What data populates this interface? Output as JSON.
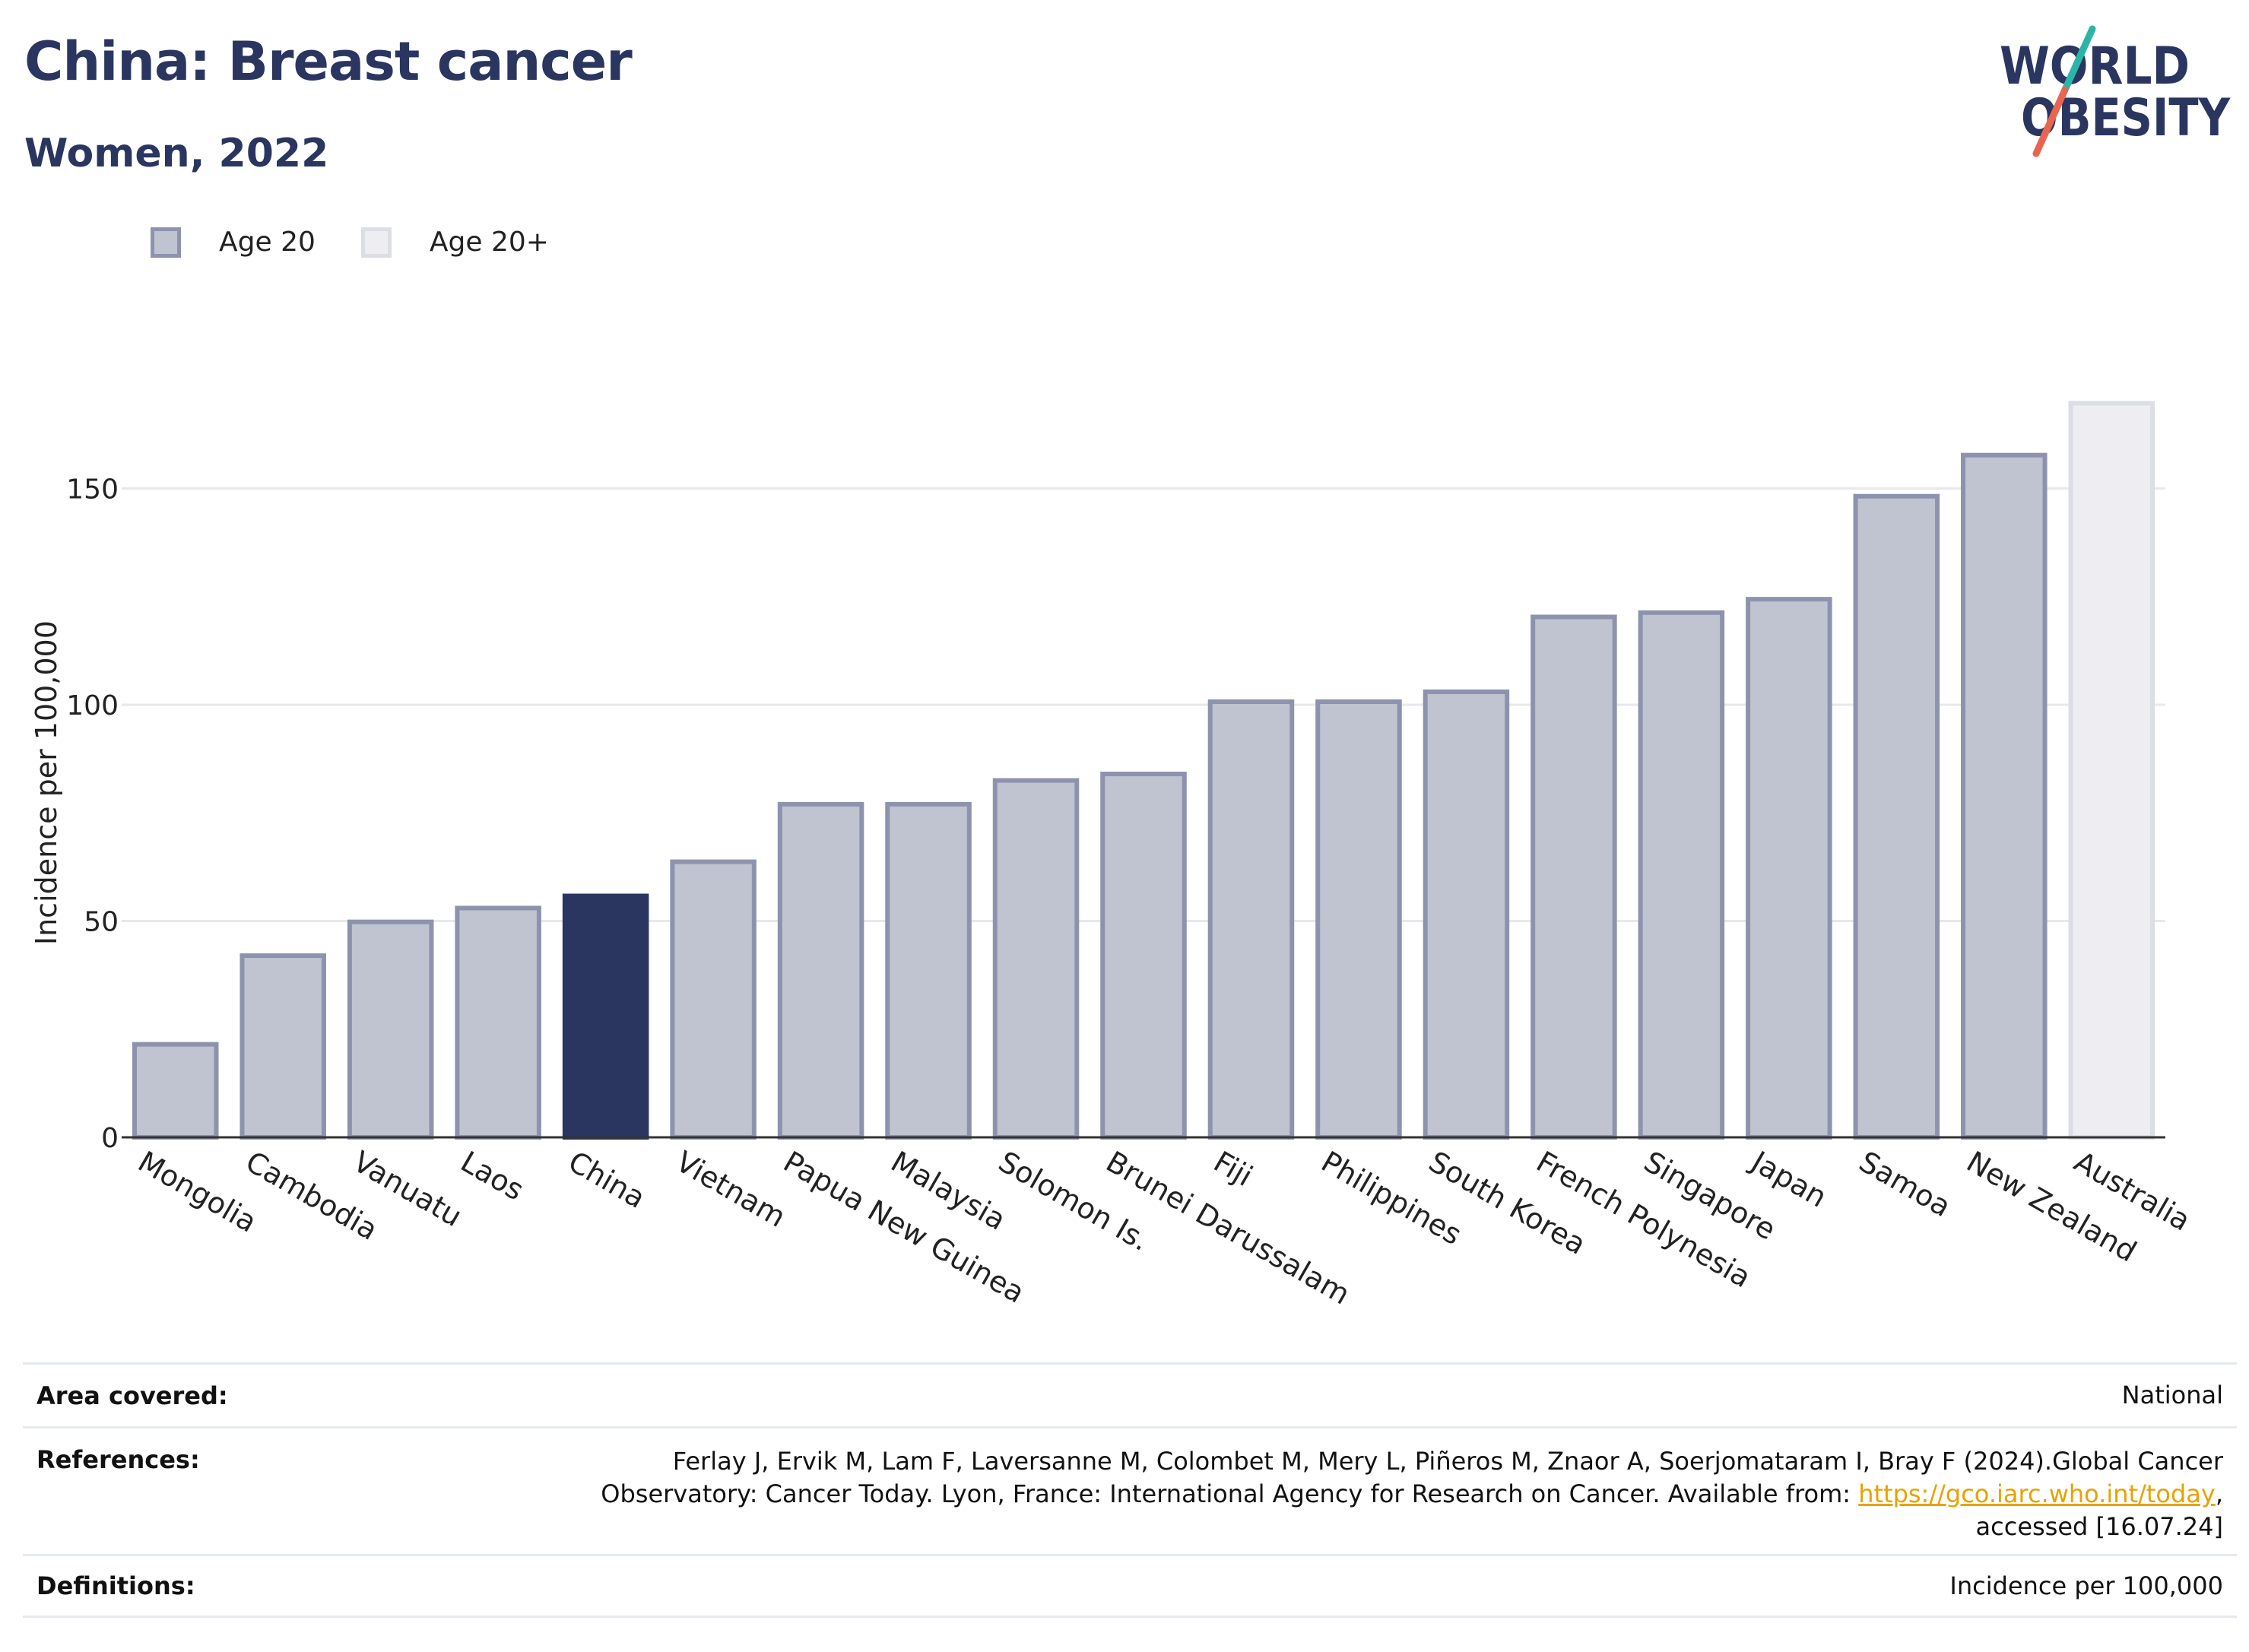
{
  "header": {
    "title": "China: Breast cancer",
    "subtitle": "Women, 2022"
  },
  "logo": {
    "line1": "WORLD",
    "line2": "OBESITY",
    "colors": {
      "text": "#2a3560",
      "slash_top": "#2bb5a8",
      "slash_bottom": "#e8654f"
    }
  },
  "legend": {
    "items": [
      {
        "label": "Age 20",
        "fill": "#c0c3d0",
        "stroke": "#8d93ad"
      },
      {
        "label": "Age 20+",
        "fill": "#eeeef2",
        "stroke": "#dcdee5"
      }
    ]
  },
  "chart_data": {
    "type": "bar",
    "ylabel": "Incidence per 100,000",
    "xlabel": "",
    "ylim": [
      0,
      178
    ],
    "yticks": [
      0,
      50,
      100,
      150
    ],
    "grid": true,
    "legend_position": "top-left",
    "categories": [
      "Mongolia",
      "Cambodia",
      "Vanuatu",
      "Laos",
      "China",
      "Vietnam",
      "Papua New Guinea",
      "Malaysia",
      "Solomon Is.",
      "Brunei Darussalam",
      "Fiji",
      "Philippines",
      "South Korea",
      "French Polynesia",
      "Singapore",
      "Japan",
      "Samoa",
      "New Zealand",
      "Australia"
    ],
    "values": [
      21.5,
      42,
      49.8,
      53,
      55.8,
      63.7,
      77,
      77,
      82.5,
      84,
      100.7,
      100.7,
      103,
      120.3,
      121.3,
      124.4,
      148.2,
      157.7,
      169.7
    ],
    "groups": [
      "Age 20",
      "Age 20",
      "Age 20",
      "Age 20",
      "Age 20",
      "Age 20",
      "Age 20",
      "Age 20",
      "Age 20",
      "Age 20",
      "Age 20",
      "Age 20",
      "Age 20",
      "Age 20",
      "Age 20",
      "Age 20",
      "Age 20",
      "Age 20",
      "Age 20+"
    ],
    "highlight": "China",
    "colors": {
      "bar_fill": "#c0c3d0",
      "bar_stroke": "#8d93ad",
      "highlight": "#2a3560",
      "age20plus_fill": "#eeeef2",
      "age20plus_stroke": "#dcdee5",
      "grid": "#e8e8ee",
      "axis": "#333333"
    }
  },
  "info": {
    "area_key": "Area covered:",
    "area_val": "National",
    "ref_key": "References:",
    "ref_line1": "Ferlay J, Ervik M, Lam F, Laversanne M, Colombet M, Mery L, Piñeros M, Znaor A, Soerjomataram I, Bray F (2024).Global Cancer",
    "ref_line2_prefix": "Observatory: Cancer Today. Lyon, France: International Agency for Research on Cancer. Available from: ",
    "ref_link": "https://gco.iarc.who.int/today",
    "ref_line2_suffix": ",",
    "ref_line3": "accessed [16.07.24]",
    "def_key": "Definitions:",
    "def_val": "Incidence per 100,000"
  }
}
